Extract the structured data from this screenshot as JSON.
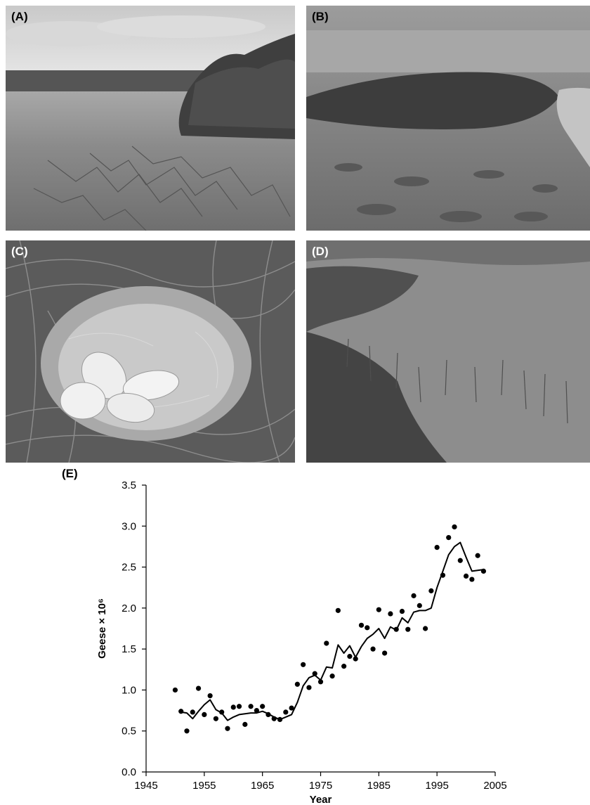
{
  "panels": {
    "a": {
      "label": "(A)"
    },
    "b": {
      "label": "(B)"
    },
    "c": {
      "label": "(C)"
    },
    "d": {
      "label": "(D)"
    },
    "e": {
      "label": "(E)"
    }
  },
  "chart_data": {
    "type": "scatter",
    "xlabel": "Year",
    "ylabel": "Geese × 10⁶",
    "xlim": [
      1945,
      2005
    ],
    "ylim": [
      0.0,
      3.5
    ],
    "xticks": [
      1945,
      1955,
      1965,
      1975,
      1985,
      1995,
      2005
    ],
    "yticks": [
      0.0,
      0.5,
      1.0,
      1.5,
      2.0,
      2.5,
      3.0,
      3.5
    ],
    "grid": false,
    "legend": "none",
    "series": [
      {
        "type": "scatter",
        "x": [
          1950,
          1951,
          1952,
          1953,
          1954,
          1955,
          1956,
          1957,
          1958,
          1959,
          1960,
          1961,
          1962,
          1963,
          1964,
          1965,
          1966,
          1967,
          1968,
          1969,
          1970,
          1971,
          1972,
          1973,
          1974,
          1975,
          1976,
          1977,
          1978,
          1979,
          1980,
          1981,
          1982,
          1983,
          1984,
          1985,
          1986,
          1987,
          1988,
          1989,
          1990,
          1991,
          1992,
          1993,
          1994,
          1995,
          1996,
          1997,
          1998,
          1999,
          2000,
          2001,
          2002,
          2003
        ],
        "y": [
          1.0,
          0.74,
          0.5,
          0.73,
          1.02,
          0.7,
          0.93,
          0.65,
          0.73,
          0.53,
          0.79,
          0.8,
          0.58,
          0.8,
          0.75,
          0.8,
          0.7,
          0.65,
          0.64,
          0.73,
          0.78,
          1.07,
          1.31,
          1.03,
          1.2,
          1.1,
          1.57,
          1.17,
          1.97,
          1.29,
          1.41,
          1.38,
          1.79,
          1.76,
          1.5,
          1.98,
          1.45,
          1.93,
          1.74,
          1.96,
          1.74,
          2.15,
          2.03,
          1.75,
          2.21,
          2.74,
          2.4,
          2.86,
          2.99,
          2.58,
          2.39,
          2.35,
          2.64,
          2.45
        ]
      },
      {
        "type": "line",
        "x": [
          1951,
          1952,
          1953,
          1954,
          1955,
          1956,
          1957,
          1958,
          1959,
          1960,
          1961,
          1962,
          1963,
          1964,
          1965,
          1966,
          1967,
          1968,
          1969,
          1970,
          1971,
          1972,
          1973,
          1974,
          1975,
          1976,
          1977,
          1978,
          1979,
          1980,
          1981,
          1982,
          1983,
          1984,
          1985,
          1986,
          1987,
          1988,
          1989,
          1990,
          1991,
          1992,
          1993,
          1994,
          1995,
          1996,
          1997,
          1998,
          1999,
          2000,
          2001,
          2002,
          2003
        ],
        "y": [
          0.73,
          0.72,
          0.65,
          0.74,
          0.82,
          0.88,
          0.76,
          0.72,
          0.63,
          0.67,
          0.7,
          0.71,
          0.72,
          0.72,
          0.74,
          0.71,
          0.67,
          0.64,
          0.67,
          0.7,
          0.85,
          1.05,
          1.15,
          1.18,
          1.12,
          1.28,
          1.27,
          1.55,
          1.45,
          1.54,
          1.4,
          1.53,
          1.63,
          1.68,
          1.75,
          1.63,
          1.77,
          1.73,
          1.88,
          1.82,
          1.95,
          1.97,
          1.97,
          2.0,
          2.25,
          2.45,
          2.65,
          2.75,
          2.8,
          2.62,
          2.45,
          2.46,
          2.47
        ]
      }
    ]
  }
}
